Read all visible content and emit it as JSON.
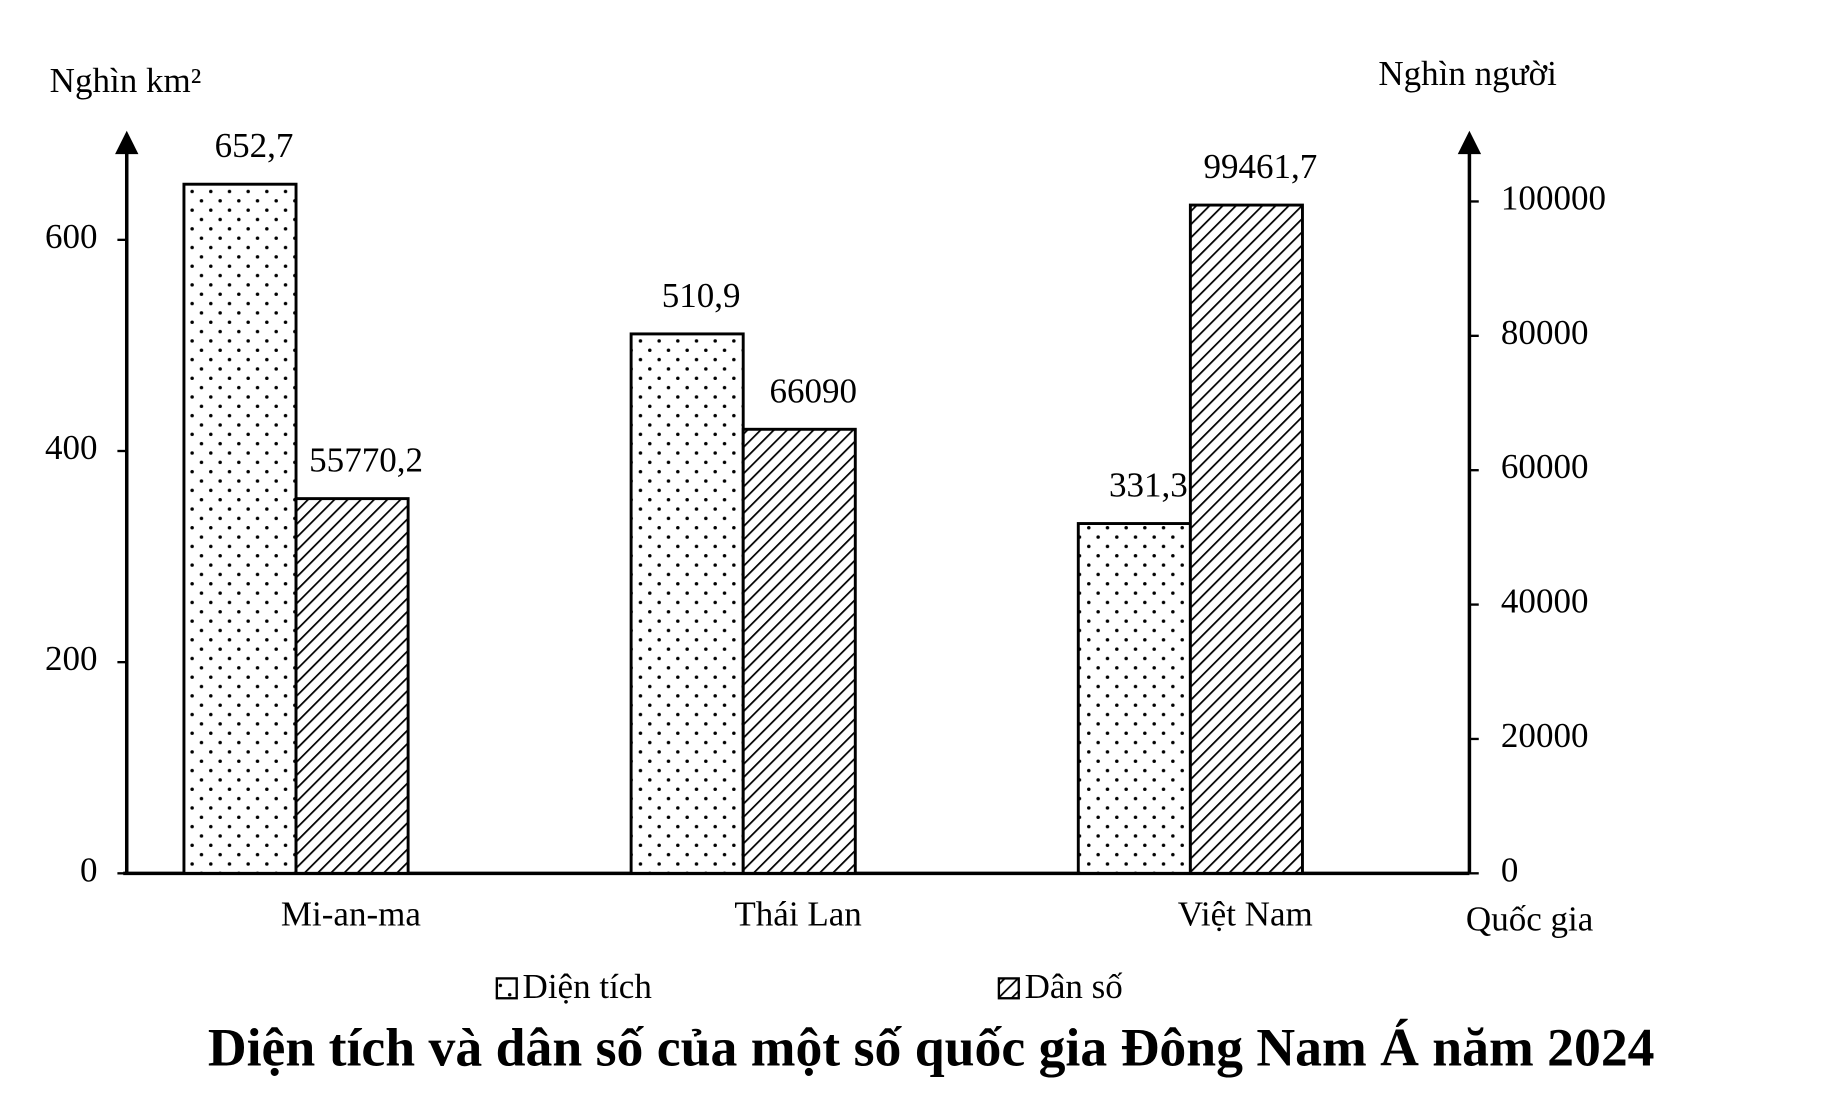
{
  "chart_data": {
    "type": "bar",
    "title": "Diện tích và dân số của một số quốc gia Đông Nam Á năm 2024",
    "y_label": "Nghìn km²",
    "y2_label": "Nghìn người",
    "x_label": "Quốc gia",
    "categories": [
      "Mi-an-ma",
      "Thái Lan",
      "Việt Nam"
    ],
    "series": [
      {
        "name": "Diện tích",
        "values": [
          652.7,
          510.9,
          331.3
        ],
        "value_labels": [
          "652,7",
          "510,9",
          "331,3"
        ],
        "pattern": "dots"
      },
      {
        "name": "Dân số",
        "values": [
          55770.2,
          66090,
          99461.7
        ],
        "value_labels": [
          "55770,2",
          "66090",
          "99461,7"
        ],
        "pattern": "hatch",
        "axis": "y2"
      }
    ],
    "ylim": [
      0,
      700
    ],
    "yticks": [
      0,
      200,
      400,
      600
    ],
    "y2lim": [
      0,
      110000
    ],
    "y2ticks": [
      0,
      20000,
      40000,
      60000,
      80000,
      100000
    ]
  }
}
